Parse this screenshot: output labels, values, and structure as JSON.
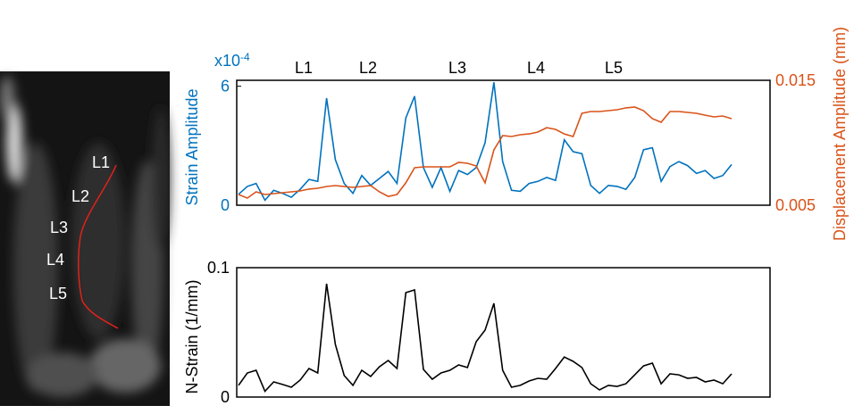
{
  "image": {
    "labels": [
      "L1",
      "L2",
      "L3",
      "L4",
      "L5"
    ]
  },
  "chart_data": [
    {
      "type": "line",
      "annotations": [
        "L1",
        "L2",
        "L3",
        "L4",
        "L5"
      ],
      "y_label": "Strain Amplitude",
      "y_multiplier": {
        "base": "x10",
        "exponent": "-4"
      },
      "y2_label": "Displacement Amplitude (mm)",
      "ylim": [
        0,
        6.3
      ],
      "yticks": [
        0,
        6
      ],
      "y2lim": [
        0.005,
        0.015
      ],
      "y2ticks": [
        0.005,
        0.015
      ],
      "series": [
        {
          "color": "#0072bd",
          "values": [
            0.55,
            0.95,
            1.1,
            0.25,
            0.75,
            0.6,
            0.4,
            0.8,
            1.3,
            1.2,
            5.4,
            2.3,
            1.1,
            0.6,
            1.5,
            1.0,
            1.35,
            1.7,
            1.1,
            4.4,
            5.5,
            1.9,
            0.9,
            1.9,
            0.7,
            1.75,
            1.55,
            1.9,
            3.15,
            6.2,
            2.2,
            0.75,
            0.7,
            1.1,
            1.2,
            1.4,
            1.25,
            3.3,
            2.7,
            2.6,
            1.0,
            0.6,
            1.0,
            0.95,
            0.8,
            1.4,
            2.8,
            2.9,
            1.2,
            1.95,
            2.2,
            2.0,
            1.6,
            1.75,
            1.35,
            1.5,
            2.05
          ]
        },
        {
          "color": "#d95319",
          "axis": "y2",
          "values": [
            0.00586,
            0.00557,
            0.00607,
            0.00586,
            0.00593,
            0.006,
            0.00607,
            0.00614,
            0.00629,
            0.00636,
            0.0065,
            0.00657,
            0.0065,
            0.00643,
            0.0065,
            0.00657,
            0.00607,
            0.00571,
            0.00586,
            0.00679,
            0.008,
            0.00807,
            0.00807,
            0.00807,
            0.00807,
            0.00843,
            0.00836,
            0.00814,
            0.00679,
            0.00943,
            0.01057,
            0.0105,
            0.01064,
            0.01071,
            0.01086,
            0.01121,
            0.01107,
            0.01071,
            0.0105,
            0.01236,
            0.0125,
            0.0125,
            0.01257,
            0.01264,
            0.01279,
            0.01286,
            0.01257,
            0.01193,
            0.01164,
            0.0125,
            0.0125,
            0.01243,
            0.01236,
            0.01221,
            0.01207,
            0.01214,
            0.01193
          ]
        }
      ]
    },
    {
      "type": "line",
      "y_label": "N-Strain (1/mm)",
      "ylim": [
        0,
        0.1
      ],
      "yticks": [
        0,
        0.1
      ],
      "series": [
        {
          "color": "#000000",
          "values": [
            0.009,
            0.0186,
            0.0207,
            0.0045,
            0.0117,
            0.0097,
            0.0076,
            0.0131,
            0.0221,
            0.0186,
            0.0876,
            0.0407,
            0.0166,
            0.009,
            0.0207,
            0.0159,
            0.0234,
            0.0283,
            0.0221,
            0.0807,
            0.0828,
            0.0214,
            0.0138,
            0.0186,
            0.0207,
            0.0248,
            0.0228,
            0.0428,
            0.0517,
            0.0724,
            0.0207,
            0.0076,
            0.009,
            0.0124,
            0.0145,
            0.0138,
            0.0221,
            0.031,
            0.0276,
            0.0228,
            0.0103,
            0.0055,
            0.009,
            0.0083,
            0.0103,
            0.0172,
            0.0241,
            0.0262,
            0.0103,
            0.0179,
            0.0172,
            0.0145,
            0.0152,
            0.0117,
            0.0131,
            0.0103,
            0.0179
          ]
        }
      ]
    }
  ]
}
